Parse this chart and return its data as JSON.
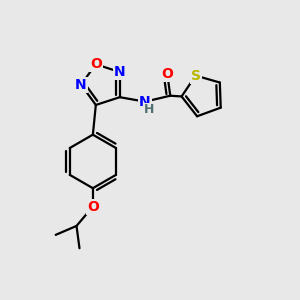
{
  "background_color": "#e8e8e8",
  "atom_colors": {
    "C": "#000000",
    "N": "#0000ff",
    "O": "#ff0000",
    "S": "#b8b800",
    "H": "#507070"
  },
  "bond_color": "#000000",
  "bond_width": 1.6,
  "font_size_atoms": 10,
  "xlim": [
    0,
    10
  ],
  "ylim": [
    0,
    10
  ]
}
